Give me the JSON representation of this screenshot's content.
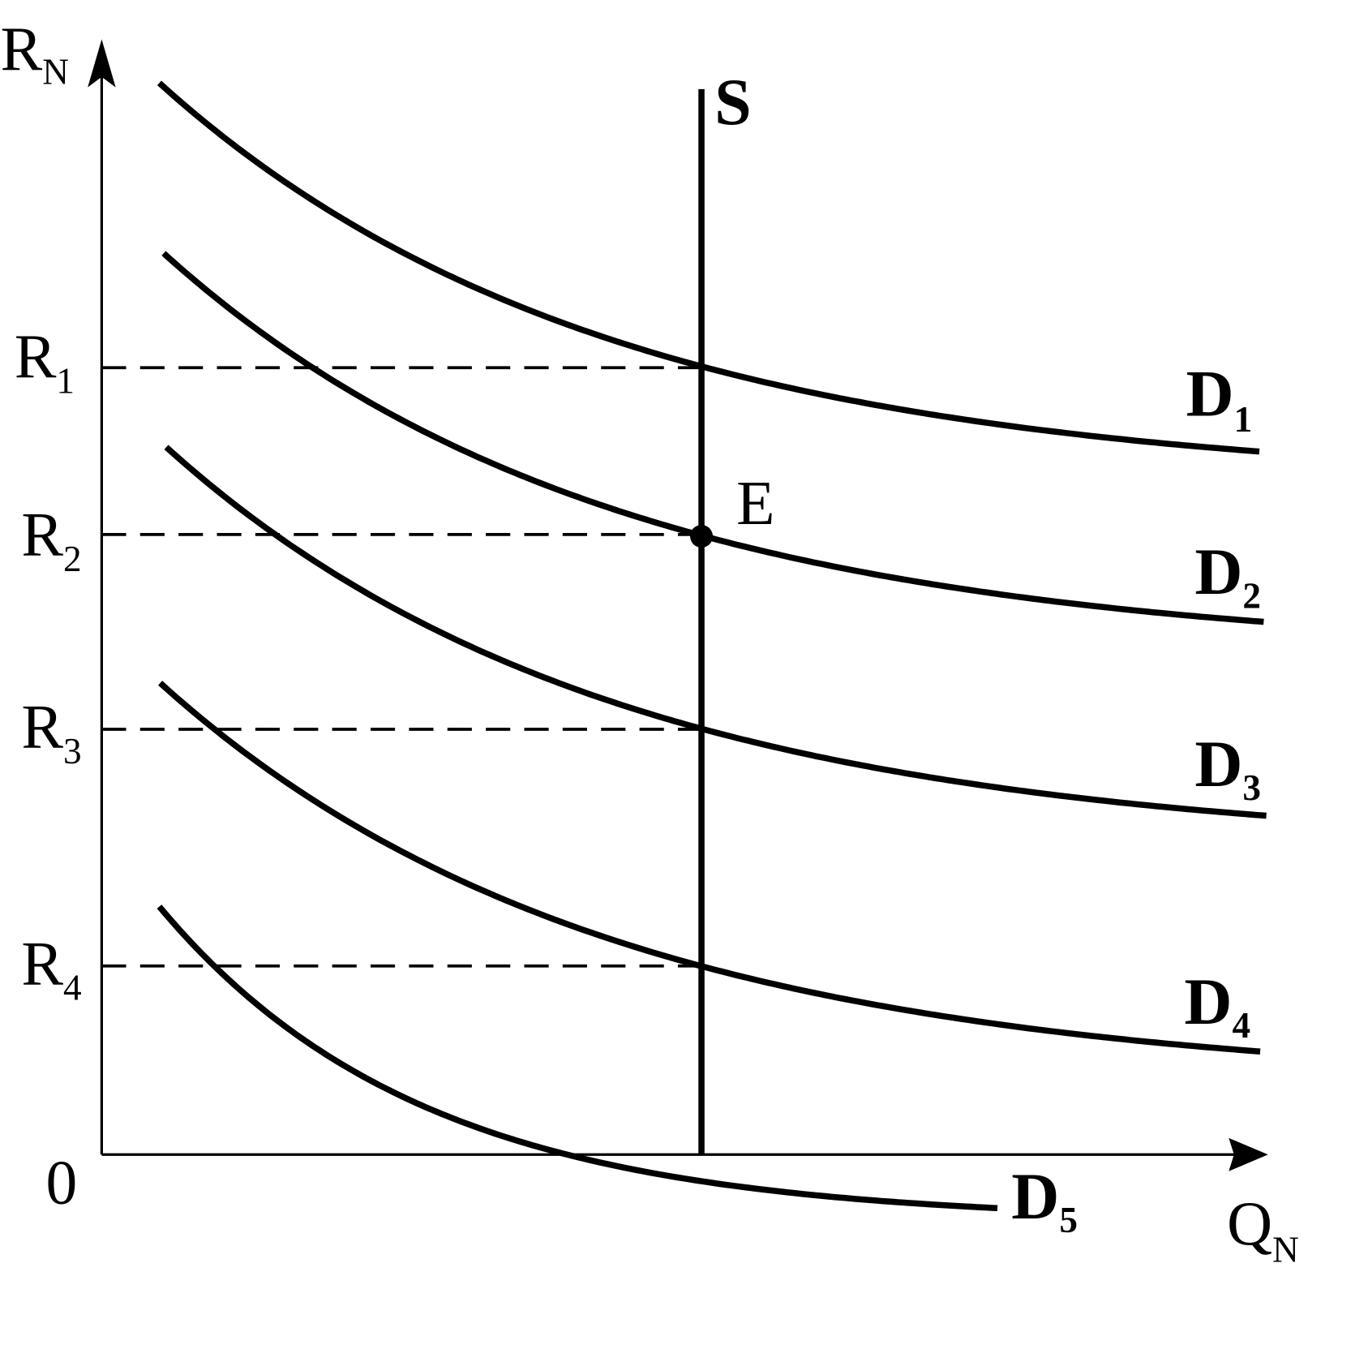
{
  "axes": {
    "y_label": "R",
    "y_label_sub": "N",
    "x_label": "Q",
    "x_label_sub": "N",
    "origin_label": "0"
  },
  "supply": {
    "label": "S"
  },
  "equilibrium": {
    "label": "E"
  },
  "rent_levels": [
    {
      "label": "R",
      "sub": "1"
    },
    {
      "label": "R",
      "sub": "2"
    },
    {
      "label": "R",
      "sub": "3"
    },
    {
      "label": "R",
      "sub": "4"
    }
  ],
  "demand_curves": [
    {
      "label": "D",
      "sub": "1"
    },
    {
      "label": "D",
      "sub": "2"
    },
    {
      "label": "D",
      "sub": "3"
    },
    {
      "label": "D",
      "sub": "4"
    },
    {
      "label": "D",
      "sub": "5"
    }
  ],
  "colors": {
    "line": "#000000",
    "background": "#ffffff"
  }
}
